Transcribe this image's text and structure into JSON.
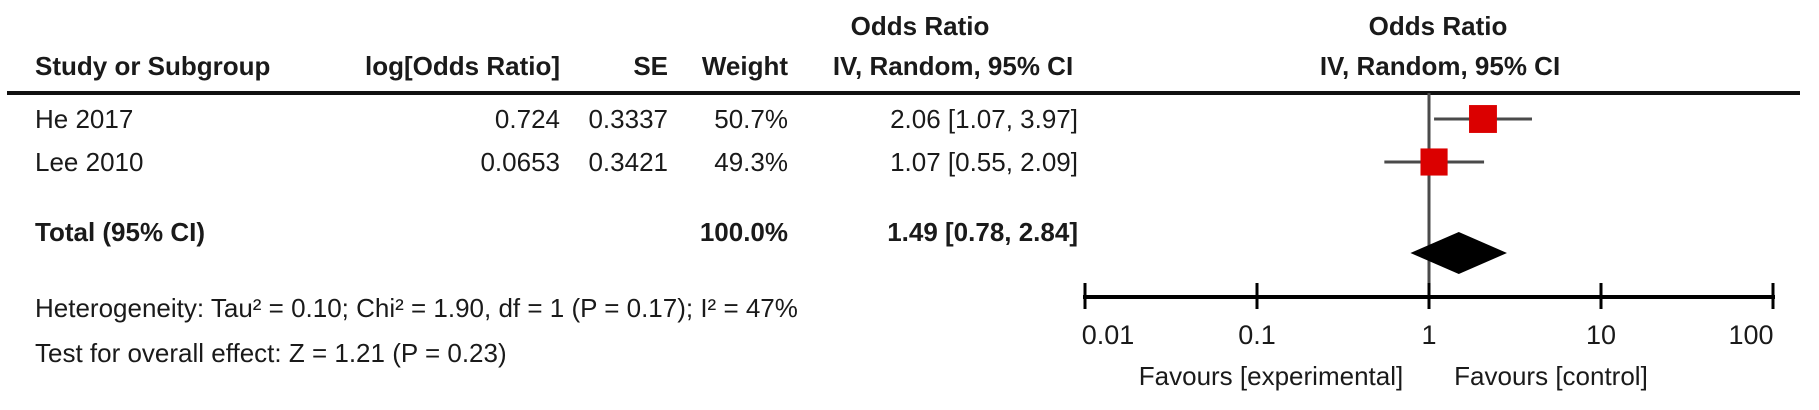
{
  "colors": {
    "marker_red": "#DB0000",
    "text": "#1a1a1a",
    "ci_line": "#4a4a4a",
    "axis": "#000000"
  },
  "header": {
    "or_text_col": "Odds Ratio",
    "or_plot_col": "Odds Ratio",
    "study": "Study or Subgroup",
    "log_or": "log[Odds Ratio]",
    "se": "SE",
    "weight": "Weight",
    "ci_text_col": "IV, Random, 95% CI",
    "ci_plot_col": "IV, Random, 95% CI"
  },
  "studies": [
    {
      "name": "He 2017",
      "log_or": "0.724",
      "se": "0.3337",
      "weight": "50.7%",
      "ci": "2.06 [1.07, 3.97]"
    },
    {
      "name": "Lee 2010",
      "log_or": "0.0653",
      "se": "0.3421",
      "weight": "49.3%",
      "ci": "1.07 [0.55, 2.09]"
    }
  ],
  "total": {
    "label": "Total (95% CI)",
    "weight": "100.0%",
    "ci": "1.49 [0.78, 2.84]"
  },
  "footnotes": {
    "heterogeneity": "Heterogeneity: Tau² = 0.10; Chi² = 1.90, df = 1 (P = 0.17); I² = 47%",
    "overall_effect": "Test for overall effect: Z = 1.21 (P = 0.23)"
  },
  "chart_data": {
    "type": "forest",
    "x_scale": "log10",
    "x_range": [
      0.01,
      100
    ],
    "x_ticks": [
      "0.01",
      "0.1",
      "1",
      "10",
      "100"
    ],
    "null_line": 1,
    "studies": [
      {
        "name": "He 2017",
        "estimate": 2.06,
        "ci_low": 1.07,
        "ci_high": 3.97,
        "weight_pct": 50.7
      },
      {
        "name": "Lee 2010",
        "estimate": 1.07,
        "ci_low": 0.55,
        "ci_high": 2.09,
        "weight_pct": 49.3
      }
    ],
    "total": {
      "estimate": 1.49,
      "ci_low": 0.78,
      "ci_high": 2.84
    },
    "axis_label_left": "Favours [experimental]",
    "axis_label_right": "Favours [control]"
  }
}
